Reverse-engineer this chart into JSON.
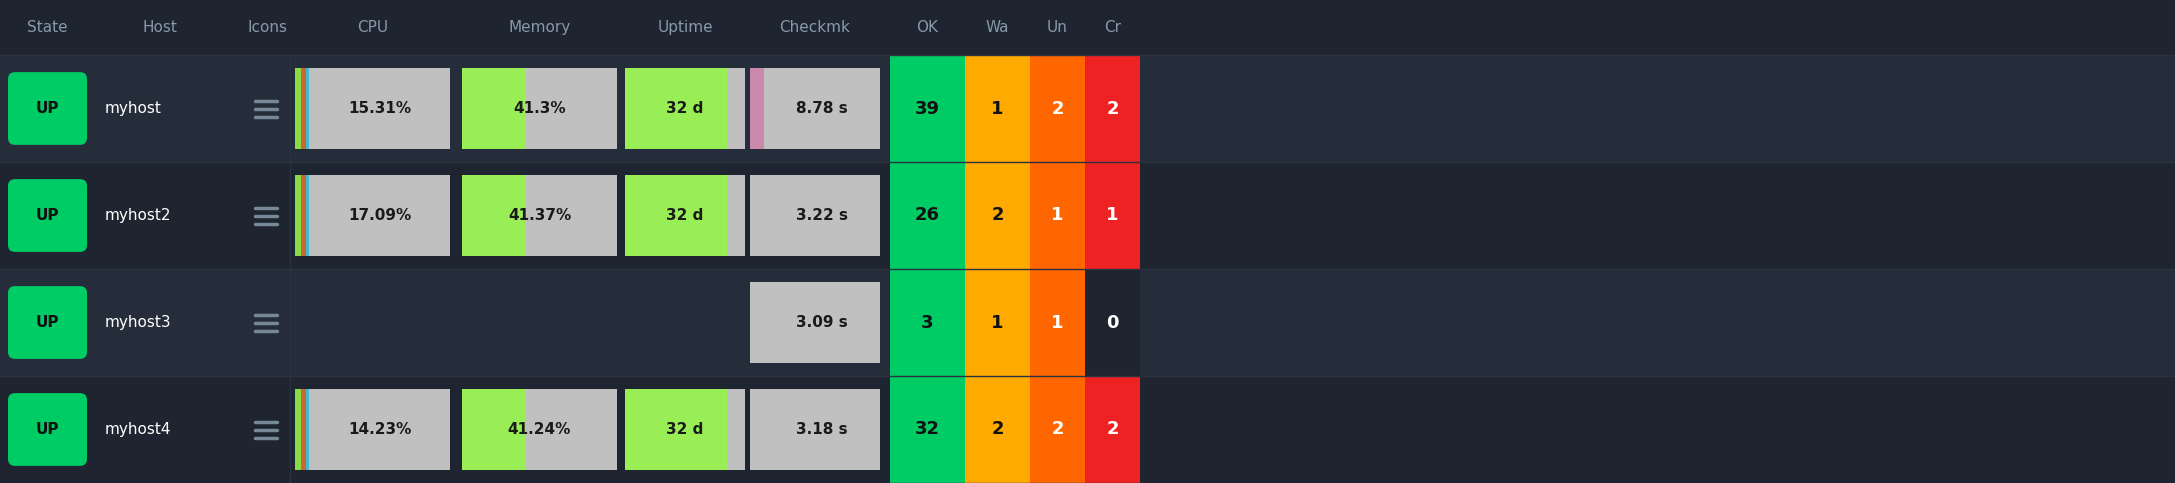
{
  "bg_color": "#1e2530",
  "row_alt_color": "#252d3a",
  "header_text_color": "#8899aa",
  "cell_text_color": "#ffffff",
  "dark_text_color": "#1a1a1a",
  "rows": [
    {
      "state": "UP",
      "host": "myhost",
      "cpu_pct": 15.31,
      "cpu_label": "15.31%",
      "memory_pct": 41.3,
      "memory_label": "41.3%",
      "uptime_pct": 85,
      "uptime_label": "32 d",
      "checkmk_label": "8.78 s",
      "checkmk_fill_color": "#cc88aa",
      "ok": "39",
      "warn": "1",
      "unknown": "2",
      "crit": "2"
    },
    {
      "state": "UP",
      "host": "myhost2",
      "cpu_pct": 17.09,
      "cpu_label": "17.09%",
      "memory_pct": 41.37,
      "memory_label": "41.37%",
      "uptime_pct": 85,
      "uptime_label": "32 d",
      "checkmk_label": "3.22 s",
      "checkmk_fill_color": "#c0c0c0",
      "ok": "26",
      "warn": "2",
      "unknown": "1",
      "crit": "1"
    },
    {
      "state": "UP",
      "host": "myhost3",
      "cpu_pct": null,
      "cpu_label": null,
      "memory_pct": null,
      "memory_label": null,
      "uptime_pct": null,
      "uptime_label": null,
      "checkmk_label": "3.09 s",
      "checkmk_fill_color": "#c0c0c0",
      "ok": "3",
      "warn": "1",
      "unknown": "1",
      "crit": "0"
    },
    {
      "state": "UP",
      "host": "myhost4",
      "cpu_pct": 14.23,
      "cpu_label": "14.23%",
      "memory_pct": 41.24,
      "memory_label": "41.24%",
      "uptime_pct": 85,
      "uptime_label": "32 d",
      "checkmk_label": "3.18 s",
      "checkmk_fill_color": "#c0c0c0",
      "ok": "32",
      "warn": "2",
      "unknown": "2",
      "crit": "2"
    }
  ],
  "up_color": "#00cc66",
  "ok_color": "#00cc66",
  "warn_color": "#ffaa00",
  "unknown_color": "#ff6600",
  "crit_color": "#ee2222",
  "perf_bg_color": "#c0c0c0",
  "cpu_green": "#88dd44",
  "cpu_orange": "#cc6633",
  "cpu_cyan": "#44bbcc",
  "memory_bar_color": "#99ee55",
  "uptime_bar_color": "#99ee55",
  "sep_color": "#2a3242"
}
